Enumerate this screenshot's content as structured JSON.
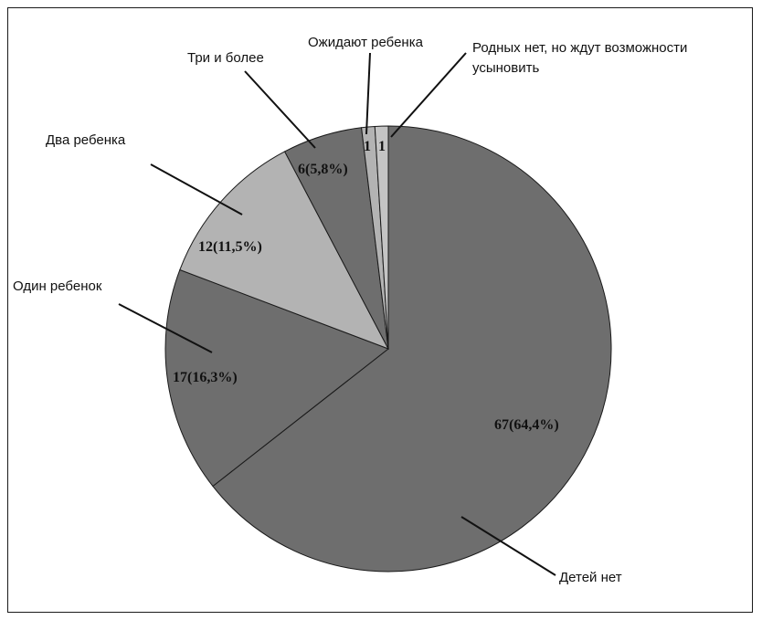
{
  "chart_data": {
    "type": "pie",
    "slices": [
      {
        "name": "Детей нет",
        "value": 67,
        "label": "67(64,4%)",
        "color": "#6e6e6e"
      },
      {
        "name": "Один ребенок",
        "value": 17,
        "label": "17(16,3%)",
        "color": "#6e6e6e"
      },
      {
        "name": "Два ребенка",
        "value": 12,
        "label": "12(11,5%)",
        "color": "#b3b3b3"
      },
      {
        "name": "Три и более",
        "value": 6,
        "label": "6(5,8%)",
        "color": "#6e6e6e"
      },
      {
        "name": "Ожидают ребенка",
        "value": 1,
        "label": "1",
        "color": "#b3b3b3"
      },
      {
        "name": "Родных нет, но ждут возможности усыновить",
        "value": 1,
        "label": "1",
        "color": "#c4c4c4"
      }
    ],
    "start": "12 o'clock",
    "direction": "clockwise"
  }
}
